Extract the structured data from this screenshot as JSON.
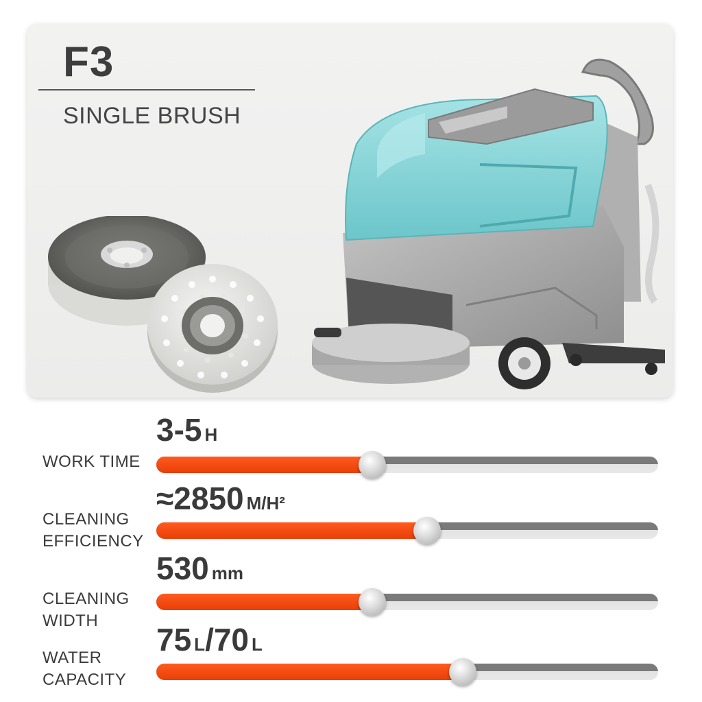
{
  "product": {
    "model": "F3",
    "subtitle": "SINGLE BRUSH"
  },
  "colors": {
    "accent": "#e8420a",
    "machine_cover": "#8fd3d6",
    "machine_body": "#a3a3a3",
    "text": "#3a3a3a"
  },
  "specs": [
    {
      "label_lines": [
        "WORK TIME"
      ],
      "value": "3-5",
      "unit": "H",
      "level": 0.43
    },
    {
      "label_lines": [
        "CLEANING",
        "EFFICIENCY"
      ],
      "value": "≈2850",
      "unit": "M/H²",
      "level": 0.54
    },
    {
      "label_lines": [
        "CLEANING",
        "WIDTH"
      ],
      "value": "530",
      "unit": "mm",
      "level": 0.43
    },
    {
      "label_lines": [
        "WATER",
        "CAPACITY"
      ],
      "value": "75",
      "unit": "L",
      "value2": "/70",
      "unit2": "L",
      "level": 0.61
    }
  ]
}
